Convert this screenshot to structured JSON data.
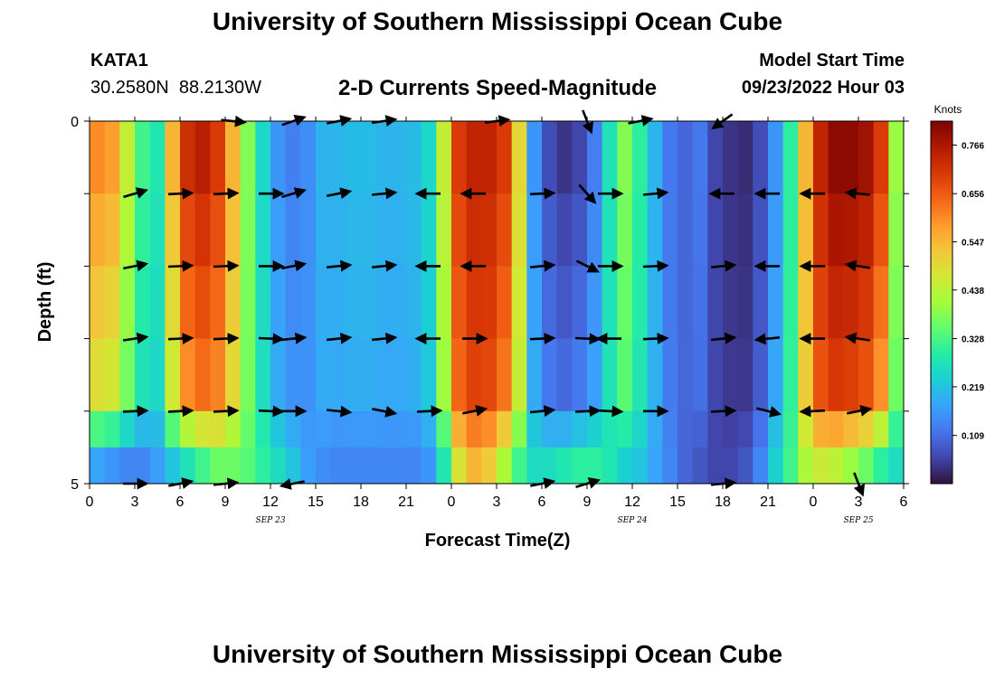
{
  "page": {
    "title_top": "University of Southern Mississippi Ocean Cube",
    "title_bottom": "University of Southern Mississippi Ocean Cube",
    "station_id": "KATA1",
    "coordinates": "30.2580N  88.2130W",
    "subtitle": "2-D Currents Speed-Magnitude",
    "model_start_label": "Model Start Time",
    "model_start_value": "09/23/2022 Hour 03"
  },
  "colors": {
    "colormap": [
      "#30123b",
      "#4145ab",
      "#4675ed",
      "#39a2fc",
      "#1bcfd4",
      "#24eca6",
      "#61fc6c",
      "#a4fc3b",
      "#d1e834",
      "#f3c63a",
      "#fe9b2d",
      "#f36315",
      "#d93806",
      "#b11901",
      "#7a0403"
    ],
    "arrow": "#000000"
  },
  "chart_data": {
    "type": "heatmap",
    "title": "2-D Currents Speed-Magnitude",
    "xlabel": "Forecast Time(Z)",
    "ylabel": "Depth (ft)",
    "colorbar_label": "Knots",
    "colorbar_ticks": [
      "0.766",
      "0.656",
      "0.547",
      "0.438",
      "0.328",
      "0.219",
      "0.109"
    ],
    "colorbar_tick_values": [
      0.766,
      0.656,
      0.547,
      0.438,
      0.328,
      0.219,
      0.109
    ],
    "color_range": [
      0.0,
      0.82
    ],
    "xlim": [
      0,
      54
    ],
    "ylim": [
      0,
      5
    ],
    "x_tick_labels": [
      "0",
      "3",
      "6",
      "9",
      "12",
      "15",
      "18",
      "21",
      "0",
      "3",
      "6",
      "9",
      "12",
      "15",
      "18",
      "21",
      "0",
      "3",
      "6"
    ],
    "x_tick_values": [
      0,
      3,
      6,
      9,
      12,
      15,
      18,
      21,
      24,
      27,
      30,
      33,
      36,
      39,
      42,
      45,
      48,
      51,
      54
    ],
    "y_tick_labels": [
      {
        "value": 0,
        "label": "0"
      },
      {
        "value": 1,
        "label": ""
      },
      {
        "value": 2,
        "label": ""
      },
      {
        "value": 3,
        "label": ""
      },
      {
        "value": 4,
        "label": ""
      },
      {
        "value": 5,
        "label": "5"
      }
    ],
    "date_labels": [
      {
        "x": 12,
        "label": "SEP 23"
      },
      {
        "x": 36,
        "label": "SEP 24"
      },
      {
        "x": 51,
        "label": "SEP 25"
      }
    ],
    "depth_rows": [
      0,
      1,
      2,
      3,
      4,
      5
    ],
    "time_hours": [
      0,
      1,
      2,
      3,
      4,
      5,
      6,
      7,
      8,
      9,
      10,
      11,
      12,
      13,
      14,
      15,
      16,
      17,
      18,
      19,
      20,
      21,
      22,
      23,
      24,
      25,
      26,
      27,
      28,
      29,
      30,
      31,
      32,
      33,
      34,
      35,
      36,
      37,
      38,
      39,
      40,
      41,
      42,
      43,
      44,
      45,
      46,
      47,
      48,
      49,
      50,
      51,
      52,
      53,
      54
    ],
    "speed_surface": [
      0.6,
      0.58,
      0.45,
      0.32,
      0.28,
      0.55,
      0.72,
      0.75,
      0.7,
      0.55,
      0.38,
      0.25,
      0.16,
      0.13,
      0.15,
      0.2,
      0.2,
      0.21,
      0.21,
      0.2,
      0.2,
      0.21,
      0.25,
      0.45,
      0.7,
      0.74,
      0.74,
      0.7,
      0.5,
      0.16,
      0.07,
      0.04,
      0.06,
      0.13,
      0.27,
      0.38,
      0.3,
      0.2,
      0.12,
      0.1,
      0.12,
      0.06,
      0.04,
      0.03,
      0.07,
      0.16,
      0.3,
      0.55,
      0.74,
      0.8,
      0.8,
      0.78,
      0.7,
      0.4,
      0.2
    ],
    "speed_deep": [
      0.18,
      0.16,
      0.14,
      0.14,
      0.17,
      0.22,
      0.27,
      0.32,
      0.36,
      0.36,
      0.34,
      0.3,
      0.26,
      0.22,
      0.17,
      0.15,
      0.14,
      0.14,
      0.14,
      0.14,
      0.14,
      0.14,
      0.16,
      0.28,
      0.48,
      0.55,
      0.52,
      0.42,
      0.32,
      0.26,
      0.26,
      0.28,
      0.3,
      0.3,
      0.28,
      0.24,
      0.22,
      0.18,
      0.14,
      0.1,
      0.08,
      0.06,
      0.06,
      0.08,
      0.14,
      0.24,
      0.32,
      0.42,
      0.46,
      0.44,
      0.4,
      0.36,
      0.3,
      0.26,
      0.24
    ],
    "speed_depth_profile": [
      1.0,
      1.0,
      0.98,
      0.94,
      0.86,
      0.0
    ],
    "vectors": [
      {
        "depth": 0,
        "time": 13.5,
        "dx": 1,
        "dy": -0.35
      },
      {
        "depth": 0,
        "time": 16.5,
        "dx": 1,
        "dy": -0.2
      },
      {
        "depth": 0,
        "time": 19.5,
        "dx": 1,
        "dy": -0.15
      },
      {
        "depth": 0,
        "time": 9.5,
        "dx": 1,
        "dy": 0.1
      },
      {
        "depth": 0,
        "time": 27.0,
        "dx": 0.8,
        "dy": -0.1
      },
      {
        "depth": 0,
        "time": 33.0,
        "dx": 0.35,
        "dy": 0.9
      },
      {
        "depth": 0,
        "time": 36.5,
        "dx": 1,
        "dy": -0.2
      },
      {
        "depth": 0,
        "time": 42.0,
        "dx": -0.7,
        "dy": 0.5
      },
      {
        "depth": 1,
        "time": 3.0,
        "dx": 1,
        "dy": -0.3
      },
      {
        "depth": 1,
        "time": 6.0,
        "dx": 1,
        "dy": -0.05
      },
      {
        "depth": 1,
        "time": 9.0,
        "dx": 1,
        "dy": -0.05
      },
      {
        "depth": 1,
        "time": 12.0,
        "dx": 1,
        "dy": 0.0
      },
      {
        "depth": 1,
        "time": 13.5,
        "dx": 1,
        "dy": -0.3
      },
      {
        "depth": 1,
        "time": 16.5,
        "dx": 1,
        "dy": -0.2
      },
      {
        "depth": 1,
        "time": 19.5,
        "dx": 1,
        "dy": -0.1
      },
      {
        "depth": 1,
        "time": 22.5,
        "dx": -1,
        "dy": 0.0
      },
      {
        "depth": 1,
        "time": 25.5,
        "dx": -1,
        "dy": 0.0
      },
      {
        "depth": 1,
        "time": 30.0,
        "dx": 1,
        "dy": -0.05
      },
      {
        "depth": 1,
        "time": 33.0,
        "dx": 0.8,
        "dy": 0.9
      },
      {
        "depth": 1,
        "time": 34.5,
        "dx": 1,
        "dy": 0.0
      },
      {
        "depth": 1,
        "time": 37.5,
        "dx": 1,
        "dy": -0.1
      },
      {
        "depth": 1,
        "time": 42.0,
        "dx": -1,
        "dy": 0.0
      },
      {
        "depth": 1,
        "time": 45.0,
        "dx": -1,
        "dy": 0.0
      },
      {
        "depth": 1,
        "time": 48.0,
        "dx": -1,
        "dy": 0.0
      },
      {
        "depth": 1,
        "time": 51.0,
        "dx": -1,
        "dy": -0.1
      },
      {
        "depth": 2,
        "time": 3.0,
        "dx": 1,
        "dy": -0.2
      },
      {
        "depth": 2,
        "time": 6.0,
        "dx": 1,
        "dy": -0.05
      },
      {
        "depth": 2,
        "time": 9.0,
        "dx": 1,
        "dy": -0.05
      },
      {
        "depth": 2,
        "time": 12.0,
        "dx": 1,
        "dy": 0.0
      },
      {
        "depth": 2,
        "time": 13.5,
        "dx": 1,
        "dy": -0.2
      },
      {
        "depth": 2,
        "time": 16.5,
        "dx": 1,
        "dy": -0.1
      },
      {
        "depth": 2,
        "time": 19.5,
        "dx": 1,
        "dy": -0.1
      },
      {
        "depth": 2,
        "time": 22.5,
        "dx": -1,
        "dy": 0.0
      },
      {
        "depth": 2,
        "time": 25.5,
        "dx": -1,
        "dy": 0.0
      },
      {
        "depth": 2,
        "time": 30.0,
        "dx": 1,
        "dy": -0.1
      },
      {
        "depth": 2,
        "time": 33.0,
        "dx": 1,
        "dy": 0.5
      },
      {
        "depth": 2,
        "time": 34.5,
        "dx": 1,
        "dy": 0.0
      },
      {
        "depth": 2,
        "time": 37.5,
        "dx": 1,
        "dy": -0.05
      },
      {
        "depth": 2,
        "time": 42.0,
        "dx": 1,
        "dy": -0.1
      },
      {
        "depth": 2,
        "time": 45.0,
        "dx": -1,
        "dy": 0.0
      },
      {
        "depth": 2,
        "time": 48.0,
        "dx": -1,
        "dy": 0.0
      },
      {
        "depth": 2,
        "time": 51.0,
        "dx": -1,
        "dy": -0.15
      },
      {
        "depth": 3,
        "time": 3.0,
        "dx": 1,
        "dy": -0.15
      },
      {
        "depth": 3,
        "time": 6.0,
        "dx": 1,
        "dy": -0.05
      },
      {
        "depth": 3,
        "time": 9.0,
        "dx": 1,
        "dy": -0.05
      },
      {
        "depth": 3,
        "time": 12.0,
        "dx": 1,
        "dy": 0.05
      },
      {
        "depth": 3,
        "time": 13.5,
        "dx": 1,
        "dy": -0.1
      },
      {
        "depth": 3,
        "time": 16.5,
        "dx": 1,
        "dy": -0.1
      },
      {
        "depth": 3,
        "time": 19.5,
        "dx": 1,
        "dy": -0.1
      },
      {
        "depth": 3,
        "time": 22.5,
        "dx": -1,
        "dy": 0.0
      },
      {
        "depth": 3,
        "time": 25.5,
        "dx": 1,
        "dy": 0.0
      },
      {
        "depth": 3,
        "time": 30.0,
        "dx": 1,
        "dy": -0.05
      },
      {
        "depth": 3,
        "time": 33.0,
        "dx": 1,
        "dy": 0.05
      },
      {
        "depth": 3,
        "time": 34.5,
        "dx": -1,
        "dy": 0.0
      },
      {
        "depth": 3,
        "time": 37.5,
        "dx": 1,
        "dy": -0.05
      },
      {
        "depth": 3,
        "time": 42.0,
        "dx": 1,
        "dy": -0.1
      },
      {
        "depth": 3,
        "time": 45.0,
        "dx": -1,
        "dy": 0.1
      },
      {
        "depth": 3,
        "time": 48.0,
        "dx": -1,
        "dy": 0.0
      },
      {
        "depth": 3,
        "time": 51.0,
        "dx": -1,
        "dy": -0.15
      },
      {
        "depth": 4,
        "time": 3.0,
        "dx": 1,
        "dy": -0.05
      },
      {
        "depth": 4,
        "time": 6.0,
        "dx": 1,
        "dy": -0.05
      },
      {
        "depth": 4,
        "time": 9.0,
        "dx": 1,
        "dy": -0.05
      },
      {
        "depth": 4,
        "time": 12.0,
        "dx": 1,
        "dy": 0.05
      },
      {
        "depth": 4,
        "time": 13.5,
        "dx": 1,
        "dy": 0.0
      },
      {
        "depth": 4,
        "time": 16.5,
        "dx": 1,
        "dy": 0.1
      },
      {
        "depth": 4,
        "time": 19.5,
        "dx": 1,
        "dy": 0.2
      },
      {
        "depth": 4,
        "time": 22.5,
        "dx": 1,
        "dy": -0.05
      },
      {
        "depth": 4,
        "time": 25.5,
        "dx": 1,
        "dy": -0.2
      },
      {
        "depth": 4,
        "time": 30.0,
        "dx": 1,
        "dy": -0.1
      },
      {
        "depth": 4,
        "time": 33.0,
        "dx": 1,
        "dy": -0.05
      },
      {
        "depth": 4,
        "time": 34.5,
        "dx": 1,
        "dy": 0.05
      },
      {
        "depth": 4,
        "time": 37.5,
        "dx": 1,
        "dy": 0.0
      },
      {
        "depth": 4,
        "time": 42.0,
        "dx": 1,
        "dy": -0.05
      },
      {
        "depth": 4,
        "time": 45.0,
        "dx": 1,
        "dy": 0.25
      },
      {
        "depth": 4,
        "time": 48.0,
        "dx": -1,
        "dy": 0.05
      },
      {
        "depth": 4,
        "time": 51.0,
        "dx": 1,
        "dy": -0.2
      },
      {
        "depth": 5,
        "time": 3.0,
        "dx": 1,
        "dy": 0.0
      },
      {
        "depth": 5,
        "time": 6.0,
        "dx": 1,
        "dy": -0.2
      },
      {
        "depth": 5,
        "time": 9.0,
        "dx": 1,
        "dy": -0.1
      },
      {
        "depth": 5,
        "time": 13.5,
        "dx": -1,
        "dy": 0.2
      },
      {
        "depth": 5,
        "time": 30.0,
        "dx": 1,
        "dy": -0.2
      },
      {
        "depth": 5,
        "time": 33.0,
        "dx": 1,
        "dy": -0.3
      },
      {
        "depth": 5,
        "time": 42.0,
        "dx": 1,
        "dy": -0.1
      },
      {
        "depth": 5,
        "time": 51.0,
        "dx": 0.35,
        "dy": 0.9
      }
    ]
  }
}
